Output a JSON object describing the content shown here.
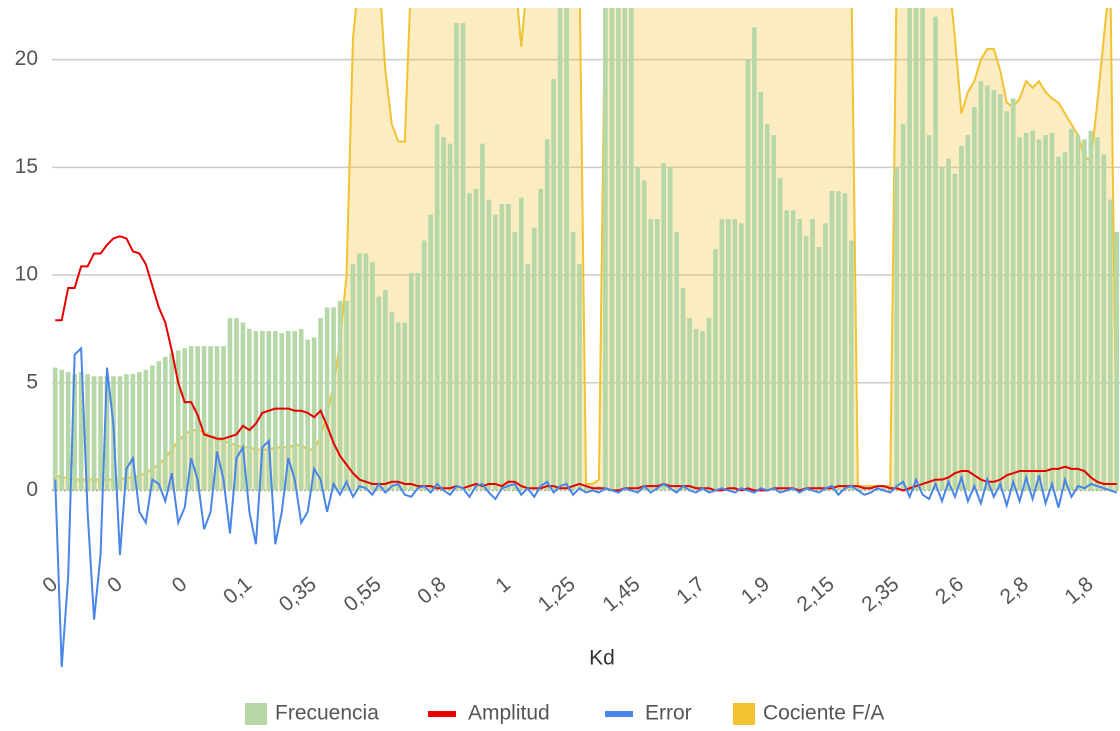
{
  "chart_data": {
    "type": "combo",
    "xlabel": "Kd",
    "categories": [
      "0",
      null,
      null,
      null,
      null,
      null,
      null,
      null,
      null,
      null,
      "0",
      null,
      null,
      null,
      null,
      null,
      null,
      null,
      null,
      null,
      "0",
      null,
      null,
      null,
      null,
      null,
      null,
      null,
      null,
      null,
      "0,1",
      null,
      null,
      null,
      null,
      null,
      null,
      null,
      null,
      null,
      "0,35",
      null,
      null,
      null,
      null,
      null,
      null,
      null,
      null,
      null,
      "0,55",
      null,
      null,
      null,
      null,
      null,
      null,
      null,
      null,
      null,
      "0,8",
      null,
      null,
      null,
      null,
      null,
      null,
      null,
      null,
      null,
      "1",
      null,
      null,
      null,
      null,
      null,
      null,
      null,
      null,
      null,
      "1,25",
      null,
      null,
      null,
      null,
      null,
      null,
      null,
      null,
      null,
      "1,45",
      null,
      null,
      null,
      null,
      null,
      null,
      null,
      null,
      null,
      "1,7",
      null,
      null,
      null,
      null,
      null,
      null,
      null,
      null,
      null,
      "1,9",
      null,
      null,
      null,
      null,
      null,
      null,
      null,
      null,
      null,
      "2,15",
      null,
      null,
      null,
      null,
      null,
      null,
      null,
      null,
      null,
      "2,35",
      null,
      null,
      null,
      null,
      null,
      null,
      null,
      null,
      null,
      "2,6",
      null,
      null,
      null,
      null,
      null,
      null,
      null,
      null,
      null,
      "2,8",
      null,
      null,
      null,
      null,
      null,
      null,
      null,
      null,
      null,
      "1,8",
      null,
      null,
      null,
      null
    ],
    "ylim": [
      -8.2,
      22.4
    ],
    "yticks": [
      0,
      5,
      10,
      15,
      20
    ],
    "grid": true,
    "legend": "bottom",
    "series": [
      {
        "name": "Frecuencia",
        "kind": "bars",
        "color": "#b6d7a8",
        "values": [
          5.7,
          5.6,
          5.5,
          5.4,
          5.5,
          5.4,
          5.3,
          5.3,
          5.3,
          5.3,
          5.3,
          5.4,
          5.4,
          5.5,
          5.6,
          5.8,
          6.0,
          6.2,
          6.4,
          6.5,
          6.6,
          6.7,
          6.7,
          6.7,
          6.7,
          6.7,
          6.7,
          8.0,
          8.0,
          7.8,
          7.5,
          7.4,
          7.4,
          7.4,
          7.4,
          7.3,
          7.4,
          7.4,
          7.5,
          7.0,
          7.1,
          8.0,
          8.5,
          8.5,
          8.8,
          8.8,
          10.5,
          11.0,
          11.0,
          10.6,
          9.0,
          9.3,
          8.3,
          7.8,
          7.8,
          10.1,
          10.1,
          11.6,
          12.8,
          17.0,
          16.4,
          16.1,
          21.7,
          21.7,
          13.8,
          14.0,
          16.1,
          13.5,
          12.8,
          13.3,
          13.3,
          12.0,
          13.6,
          10.5,
          12.2,
          14.0,
          16.3,
          19.1,
          22.4,
          22.4,
          12.0,
          10.5,
          0.2,
          0.2,
          0.2,
          22.4,
          22.4,
          22.4,
          22.4,
          22.4,
          15.0,
          14.4,
          12.6,
          12.6,
          15.2,
          15.0,
          12.0,
          9.4,
          8.0,
          7.5,
          7.4,
          8.0,
          11.2,
          12.6,
          12.6,
          12.6,
          12.4,
          20.0,
          21.5,
          18.5,
          17.0,
          16.5,
          14.5,
          13.0,
          13.0,
          12.6,
          11.8,
          12.6,
          11.3,
          12.4,
          13.9,
          13.9,
          13.8,
          11.6,
          0.2,
          0.2,
          0.2,
          0.2,
          0.2,
          0.2,
          15.0,
          17.0,
          22.4,
          22.4,
          22.4,
          16.5,
          22.0,
          15.0,
          15.4,
          14.7,
          16.0,
          16.5,
          17.8,
          19.0,
          18.8,
          18.6,
          18.4,
          17.6,
          18.2,
          16.4,
          16.6,
          16.7,
          16.3,
          16.5,
          16.6,
          15.5,
          15.7,
          16.8,
          16.5,
          16.3,
          16.7,
          16.4,
          15.6,
          13.5,
          12.0
        ]
      },
      {
        "name": "Amplitud",
        "kind": "line",
        "color": "#e60000",
        "values": [
          7.9,
          7.9,
          9.4,
          9.4,
          10.4,
          10.4,
          11.0,
          11.0,
          11.4,
          11.7,
          11.8,
          11.7,
          11.1,
          11.0,
          10.5,
          9.5,
          8.5,
          7.8,
          6.5,
          5.0,
          4.1,
          4.1,
          3.5,
          2.6,
          2.5,
          2.4,
          2.4,
          2.5,
          2.6,
          3.0,
          2.8,
          3.1,
          3.6,
          3.7,
          3.8,
          3.8,
          3.8,
          3.7,
          3.7,
          3.6,
          3.4,
          3.7,
          3.0,
          2.2,
          1.6,
          1.2,
          0.8,
          0.5,
          0.4,
          0.3,
          0.3,
          0.3,
          0.4,
          0.4,
          0.3,
          0.3,
          0.2,
          0.2,
          0.2,
          0.1,
          0.1,
          0.1,
          0.2,
          0.1,
          0.2,
          0.3,
          0.2,
          0.3,
          0.3,
          0.2,
          0.4,
          0.4,
          0.2,
          0.1,
          0.1,
          0.1,
          0.2,
          0.2,
          0.1,
          0.1,
          0.2,
          0.3,
          0.2,
          0.1,
          0.1,
          0.1,
          0.0,
          0.0,
          0.1,
          0.1,
          0.1,
          0.2,
          0.2,
          0.2,
          0.3,
          0.2,
          0.2,
          0.2,
          0.2,
          0.1,
          0.1,
          0.1,
          0.0,
          0.0,
          0.1,
          0.1,
          0.0,
          0.1,
          0.0,
          0.0,
          0.0,
          0.1,
          0.1,
          0.1,
          0.1,
          0.0,
          0.1,
          0.1,
          0.1,
          0.1,
          0.1,
          0.2,
          0.2,
          0.2,
          0.2,
          0.1,
          0.1,
          0.2,
          0.2,
          0.1,
          0.1,
          0.0,
          0.1,
          0.2,
          0.3,
          0.4,
          0.5,
          0.5,
          0.6,
          0.8,
          0.9,
          0.9,
          0.7,
          0.5,
          0.4,
          0.4,
          0.5,
          0.7,
          0.8,
          0.9,
          0.9,
          0.9,
          0.9,
          0.9,
          1.0,
          1.0,
          1.1,
          1.0,
          1.0,
          0.9,
          0.6,
          0.4,
          0.3,
          0.3,
          0.3
        ]
      },
      {
        "name": "Error",
        "kind": "line",
        "color": "#4a86e8",
        "values": [
          0.5,
          -8.2,
          -4.0,
          6.3,
          6.6,
          -1.0,
          -6.0,
          -3.0,
          5.7,
          3.0,
          -3.0,
          1.0,
          1.5,
          -1.0,
          -1.5,
          0.5,
          0.3,
          -0.5,
          0.8,
          -1.5,
          -0.8,
          1.5,
          0.5,
          -1.8,
          -1.0,
          1.8,
          0.5,
          -2.0,
          1.5,
          2.0,
          -1.0,
          -2.5,
          2.0,
          2.3,
          -2.5,
          -1.0,
          1.5,
          0.5,
          -1.5,
          -1.0,
          1.0,
          0.5,
          -1.0,
          0.3,
          -0.2,
          0.4,
          -0.3,
          0.2,
          0.1,
          -0.2,
          0.3,
          -0.1,
          0.2,
          0.3,
          -0.2,
          -0.3,
          0.1,
          0.2,
          -0.1,
          0.3,
          0.0,
          -0.2,
          0.2,
          0.1,
          -0.3,
          0.2,
          0.3,
          -0.1,
          -0.4,
          0.1,
          0.2,
          0.3,
          -0.2,
          0.1,
          -0.3,
          0.2,
          0.4,
          -0.1,
          0.2,
          0.3,
          -0.2,
          0.1,
          -0.1,
          0.0,
          -0.1,
          0.1,
          0.0,
          -0.1,
          0.1,
          0.0,
          -0.1,
          0.2,
          -0.1,
          0.1,
          0.3,
          0.1,
          -0.1,
          0.2,
          0.0,
          -0.1,
          0.1,
          -0.1,
          0.0,
          0.1,
          0.0,
          -0.1,
          0.1,
          0.0,
          -0.1,
          0.1,
          0.0,
          0.1,
          -0.1,
          0.0,
          0.1,
          -0.1,
          0.1,
          0.0,
          -0.1,
          0.1,
          0.2,
          -0.2,
          0.1,
          0.2,
          0.0,
          -0.2,
          -0.1,
          0.1,
          0.0,
          -0.1,
          0.2,
          0.4,
          -0.3,
          0.5,
          -0.2,
          -0.4,
          0.3,
          -0.5,
          0.4,
          -0.3,
          0.6,
          -0.5,
          0.2,
          -0.6,
          0.5,
          -0.3,
          0.3,
          -0.7,
          0.4,
          -0.5,
          0.6,
          -0.4,
          0.7,
          -0.6,
          0.3,
          -0.8,
          0.5,
          -0.3,
          0.2,
          0.1,
          0.3,
          0.2,
          0.1,
          0.0,
          -0.1
        ]
      },
      {
        "name": "Cociente F/A",
        "kind": "area",
        "color": "#f1c232",
        "values": [
          0.7,
          0.6,
          0.6,
          0.5,
          0.5,
          0.5,
          0.5,
          0.5,
          0.5,
          0.5,
          0.5,
          0.6,
          0.6,
          0.7,
          0.8,
          1.0,
          1.2,
          1.5,
          1.9,
          2.3,
          2.6,
          2.8,
          2.8,
          2.7,
          2.6,
          2.4,
          2.3,
          2.2,
          2.1,
          2.0,
          2.0,
          1.9,
          1.9,
          1.9,
          2.0,
          2.0,
          2.0,
          2.1,
          2.1,
          1.9,
          1.9,
          2.5,
          3.5,
          4.9,
          6.9,
          10.0,
          21.0,
          24,
          24,
          24,
          24,
          19.5,
          17.0,
          16.2,
          16.2,
          24,
          24,
          24,
          24,
          24,
          24,
          24,
          24,
          24,
          24,
          24,
          24,
          24,
          24,
          24,
          24,
          24,
          20.6,
          24,
          24,
          24,
          24,
          24,
          24,
          24,
          24,
          24,
          0.3,
          0.3,
          0.5,
          24,
          24,
          24,
          24,
          24,
          24,
          24,
          24,
          24,
          24,
          24,
          24,
          24,
          24,
          24,
          24,
          24,
          24,
          24,
          24,
          24,
          24,
          24,
          24,
          24,
          24,
          24,
          24,
          24,
          24,
          24,
          24,
          24,
          24,
          24,
          24,
          24,
          24,
          24,
          0.2,
          0.2,
          0.2,
          0.2,
          0.2,
          0.2,
          24,
          24,
          24,
          24,
          24,
          24,
          24,
          24,
          24,
          21.0,
          17.5,
          18.5,
          19.0,
          20.0,
          20.5,
          20.5,
          19.5,
          18.0,
          17.8,
          18.2,
          19.0,
          18.7,
          19.0,
          18.5,
          18.2,
          18.0,
          17.5,
          17.0,
          16.5,
          15.5,
          15.3,
          18.0,
          21.0,
          24,
          0.3
        ]
      }
    ]
  }
}
